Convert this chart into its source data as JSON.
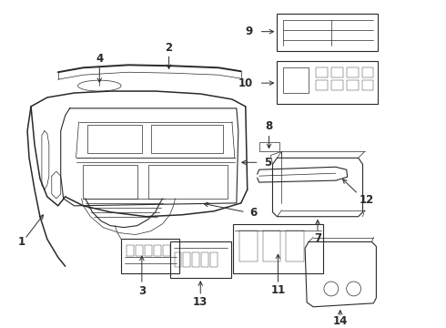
{
  "bg_color": "#ffffff",
  "line_color": "#2a2a2a",
  "label_color": "#000000",
  "figsize": [
    4.9,
    3.6
  ],
  "dpi": 100,
  "lw_main": 1.1,
  "lw_med": 0.8,
  "lw_thin": 0.5,
  "lw_xtra": 0.3,
  "label_fontsize": 8.5
}
